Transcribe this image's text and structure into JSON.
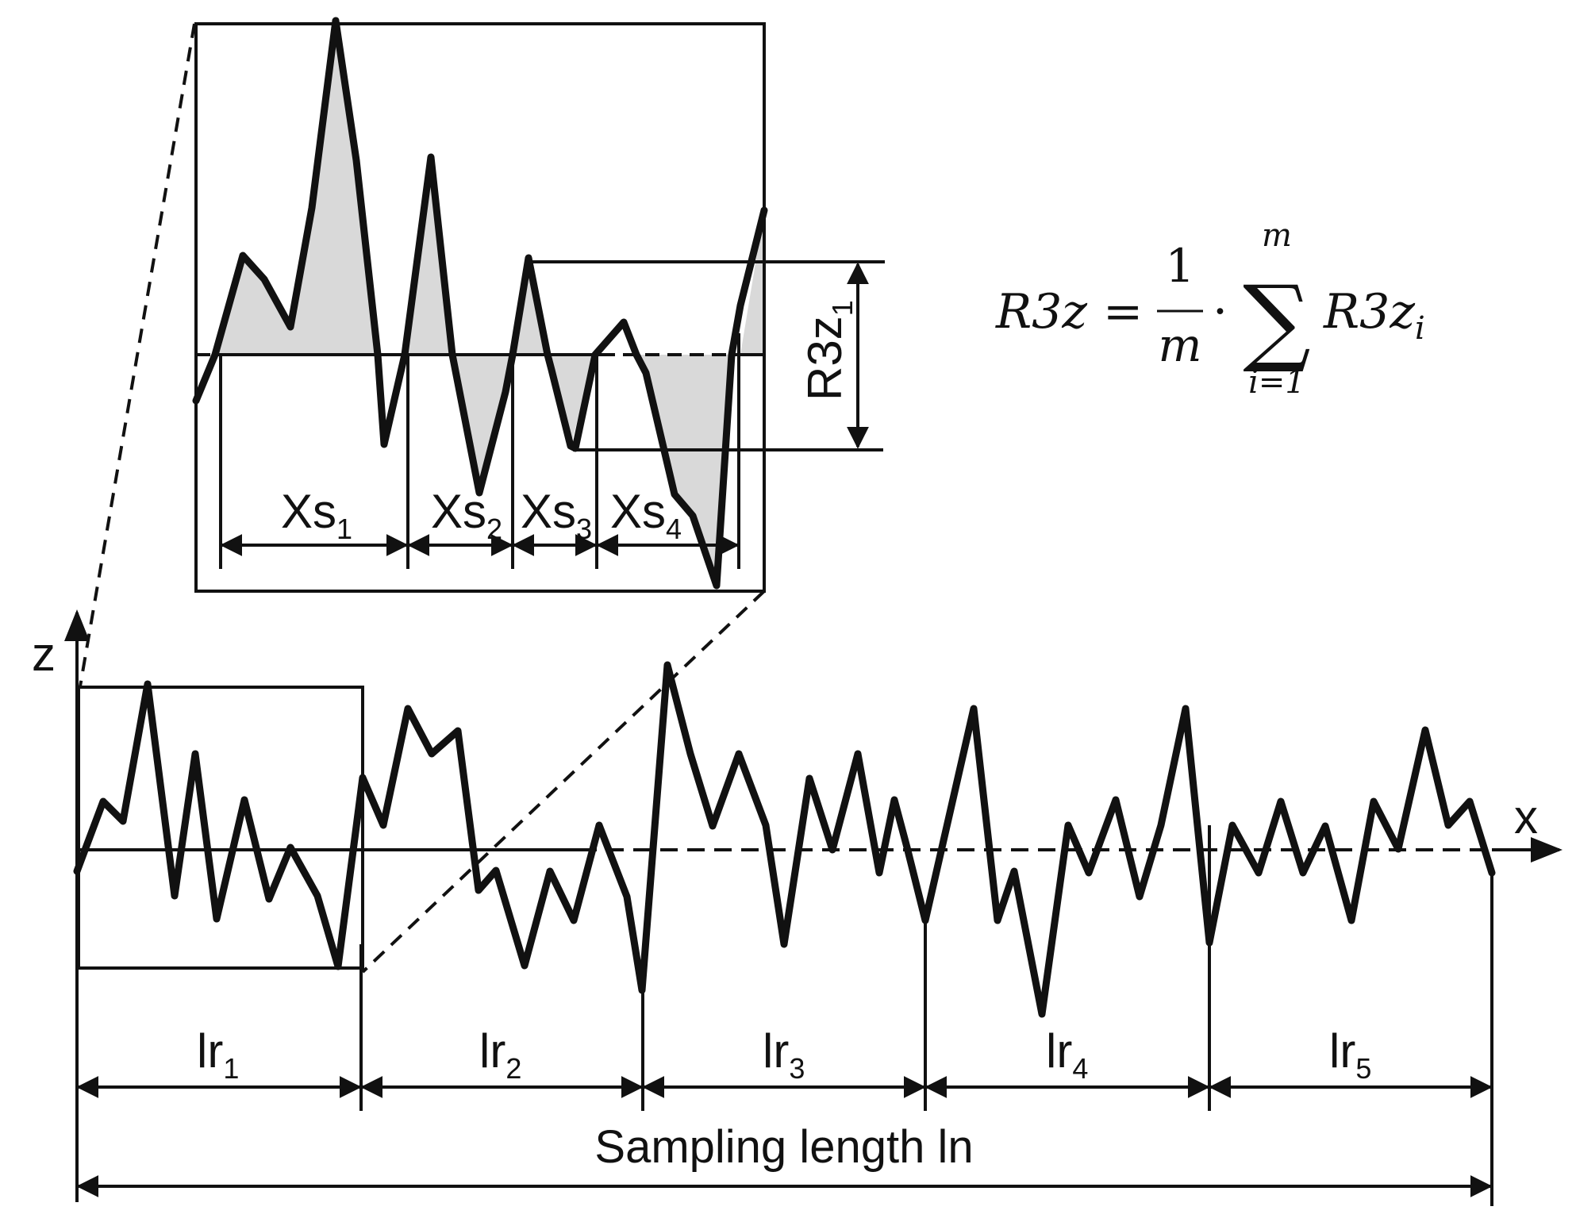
{
  "axes": {
    "z": "z",
    "x": "x"
  },
  "sections": [
    {
      "label": "lr",
      "sub": "1"
    },
    {
      "label": "lr",
      "sub": "2"
    },
    {
      "label": "lr",
      "sub": "3"
    },
    {
      "label": "lr",
      "sub": "4"
    },
    {
      "label": "lr",
      "sub": "5"
    }
  ],
  "sampling_label": "Sampling length ln",
  "zoom": {
    "spacings": [
      {
        "label": "Xs",
        "sub": "1"
      },
      {
        "label": "Xs",
        "sub": "2"
      },
      {
        "label": "Xs",
        "sub": "3"
      },
      {
        "label": "Xs",
        "sub": "4"
      }
    ],
    "height_label": {
      "label": "R3z",
      "sub": "1"
    }
  },
  "formula": {
    "lhs": "R3z",
    "eq": "=",
    "numerator": "1",
    "denominator": "m",
    "dot": "·",
    "sigma": "∑",
    "upper": "m",
    "lower": "i=1",
    "term": "R3z",
    "term_sub": "i"
  },
  "colors": {
    "stroke": "#111111",
    "fill_area": "#d9d9d9"
  }
}
